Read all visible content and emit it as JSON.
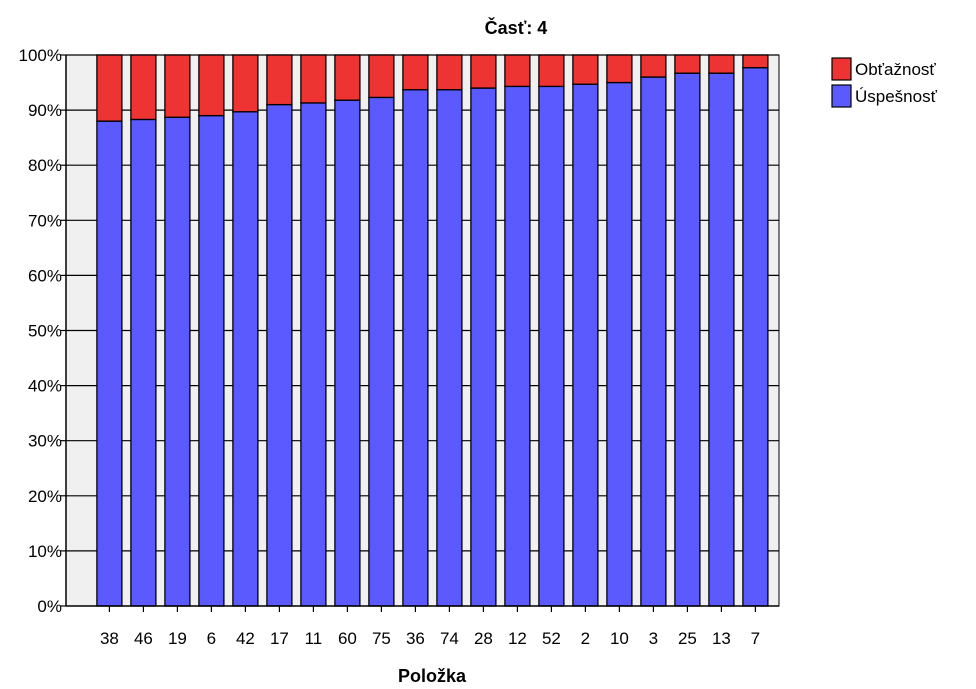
{
  "chart_data": {
    "type": "bar",
    "stacked": true,
    "title": "Časť: 4",
    "xlabel": "Položka",
    "ylabel": "",
    "ylim": [
      0,
      100
    ],
    "y_ticks": [
      "0%",
      "10%",
      "20%",
      "30%",
      "40%",
      "50%",
      "60%",
      "70%",
      "80%",
      "90%",
      "100%"
    ],
    "grid": true,
    "legend_position": "top-right",
    "categories": [
      "38",
      "46",
      "19",
      "6",
      "42",
      "17",
      "11",
      "60",
      "75",
      "36",
      "74",
      "28",
      "12",
      "52",
      "2",
      "10",
      "3",
      "25",
      "13",
      "7"
    ],
    "series": [
      {
        "name": "Úspešnosť",
        "color": "#5a5aff",
        "values": [
          88.0,
          88.3,
          88.7,
          89.0,
          89.7,
          91.0,
          91.3,
          91.8,
          92.3,
          93.7,
          93.7,
          94.0,
          94.3,
          94.3,
          94.7,
          95.0,
          96.0,
          96.7,
          96.7,
          97.7
        ]
      },
      {
        "name": "Obťažnosť",
        "color": "#ee3333",
        "values": [
          12.0,
          11.7,
          11.3,
          11.0,
          10.3,
          9.0,
          8.7,
          8.2,
          7.7,
          6.3,
          6.3,
          6.0,
          5.7,
          5.7,
          5.3,
          5.0,
          4.0,
          3.3,
          3.3,
          2.3
        ]
      }
    ],
    "legend_order": [
      "Obťažnosť",
      "Úspešnosť"
    ],
    "plot_background": "#f0f0f0"
  }
}
